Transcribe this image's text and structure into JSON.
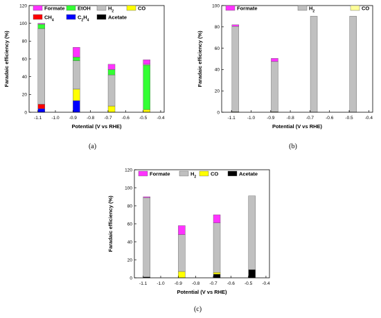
{
  "chart_data": [
    {
      "type": "bar",
      "stacked": true,
      "caption": "(a)",
      "xlabel": "Potential (V vs RHE)",
      "ylabel": "Faradaic efficiency (%)",
      "xlim": [
        -1.15,
        -0.38
      ],
      "ylim": [
        0,
        120
      ],
      "xticks": [
        -1.1,
        -1.0,
        -0.9,
        -0.8,
        -0.7,
        -0.6,
        -0.5,
        -0.4
      ],
      "yticks": [
        0,
        20,
        40,
        60,
        80,
        100,
        120
      ],
      "legend_position": "top",
      "legend": [
        {
          "name": "Formate",
          "color": "#ff33ff"
        },
        {
          "name": "EtOH",
          "color": "#33ff33"
        },
        {
          "name": "H",
          "sub": "2",
          "color": "#c0c0c0"
        },
        {
          "name": "CO",
          "color": "#ffff00"
        },
        {
          "name": "CH",
          "sub": "4",
          "color": "#ff0000"
        },
        {
          "name": "C",
          "sub": "2",
          "suffix": "H",
          "sub2": "4",
          "color": "#0000ff"
        },
        {
          "name": "Acetate",
          "color": "#000000"
        }
      ],
      "x": [
        -1.08,
        -0.88,
        -0.68,
        -0.48
      ],
      "stacks": [
        [
          {
            "s": "C2H4",
            "v": 4,
            "c": "#0000ff"
          },
          {
            "s": "CH4",
            "v": 5,
            "c": "#ff0000"
          },
          {
            "s": "H2",
            "v": 85,
            "c": "#c0c0c0"
          },
          {
            "s": "EtOH",
            "v": 5,
            "c": "#33ff33"
          },
          {
            "s": "Formate",
            "v": 1,
            "c": "#ff33ff"
          }
        ],
        [
          {
            "s": "C2H4",
            "v": 13,
            "c": "#0000ff"
          },
          {
            "s": "CO",
            "v": 13,
            "c": "#ffff00"
          },
          {
            "s": "H2",
            "v": 32,
            "c": "#c0c0c0"
          },
          {
            "s": "EtOH",
            "v": 4,
            "c": "#33ff33"
          },
          {
            "s": "Formate",
            "v": 11,
            "c": "#ff33ff"
          }
        ],
        [
          {
            "s": "CO",
            "v": 7,
            "c": "#ffff00"
          },
          {
            "s": "H2",
            "v": 35,
            "c": "#c0c0c0"
          },
          {
            "s": "EtOH",
            "v": 6,
            "c": "#33ff33"
          },
          {
            "s": "Formate",
            "v": 6,
            "c": "#ff33ff"
          }
        ],
        [
          {
            "s": "CO",
            "v": 3,
            "c": "#ffff00"
          },
          {
            "s": "EtOH",
            "v": 50,
            "c": "#33ff33"
          },
          {
            "s": "H2",
            "v": 1,
            "c": "#c0c0c0"
          },
          {
            "s": "Formate",
            "v": 5,
            "c": "#ff33ff"
          }
        ]
      ]
    },
    {
      "type": "bar",
      "stacked": true,
      "caption": "(b)",
      "xlabel": "Potential (V vs RHE)",
      "ylabel": "Faradaic efficiency (%)",
      "xlim": [
        -1.15,
        -0.38
      ],
      "ylim": [
        0,
        100
      ],
      "xticks": [
        -1.1,
        -1.0,
        -0.9,
        -0.8,
        -0.7,
        -0.6,
        -0.5,
        -0.4
      ],
      "yticks": [
        0,
        20,
        40,
        60,
        80,
        100
      ],
      "legend_position": "top",
      "legend": [
        {
          "name": "Formate",
          "color": "#ff33ff"
        },
        {
          "name": "H",
          "sub": "2",
          "color": "#c0c0c0"
        },
        {
          "name": "CO",
          "color": "#ffff99"
        }
      ],
      "x": [
        -1.08,
        -0.88,
        -0.68,
        -0.48
      ],
      "stacks": [
        [
          {
            "s": "CO",
            "v": 0.5,
            "c": "#ffff99"
          },
          {
            "s": "H2",
            "v": 80,
            "c": "#c0c0c0"
          },
          {
            "s": "Formate",
            "v": 1.5,
            "c": "#ff33ff"
          }
        ],
        [
          {
            "s": "CO",
            "v": 0.5,
            "c": "#ffff99"
          },
          {
            "s": "H2",
            "v": 47,
            "c": "#c0c0c0"
          },
          {
            "s": "Formate",
            "v": 3,
            "c": "#ff33ff"
          }
        ],
        [
          {
            "s": "H2",
            "v": 90,
            "c": "#c0c0c0"
          }
        ],
        [
          {
            "s": "H2",
            "v": 90,
            "c": "#c0c0c0"
          }
        ]
      ]
    },
    {
      "type": "bar",
      "stacked": true,
      "caption": "(c)",
      "xlabel": "Potential (V vs RHE)",
      "ylabel": "Faradaic efficiency (%)",
      "xlim": [
        -1.15,
        -0.38
      ],
      "ylim": [
        0,
        120
      ],
      "xticks": [
        -1.1,
        -1.0,
        -0.9,
        -0.8,
        -0.7,
        -0.6,
        -0.5,
        -0.4
      ],
      "yticks": [
        0,
        20,
        40,
        60,
        80,
        100,
        120
      ],
      "legend_position": "top",
      "legend": [
        {
          "name": "Formate",
          "color": "#ff33ff"
        },
        {
          "name": "H",
          "sub": "2",
          "color": "#c0c0c0"
        },
        {
          "name": "CO",
          "color": "#ffff00"
        },
        {
          "name": "Acetate",
          "color": "#000000"
        }
      ],
      "x": [
        -1.08,
        -0.88,
        -0.68,
        -0.48
      ],
      "stacks": [
        [
          {
            "s": "Acetate",
            "v": 1,
            "c": "#000000"
          },
          {
            "s": "H2",
            "v": 88,
            "c": "#c0c0c0"
          },
          {
            "s": "Formate",
            "v": 1,
            "c": "#ff33ff"
          }
        ],
        [
          {
            "s": "CO",
            "v": 7,
            "c": "#ffff00"
          },
          {
            "s": "H2",
            "v": 41,
            "c": "#c0c0c0"
          },
          {
            "s": "Formate",
            "v": 10,
            "c": "#ff33ff"
          }
        ],
        [
          {
            "s": "Acetate",
            "v": 4,
            "c": "#000000"
          },
          {
            "s": "CO",
            "v": 2,
            "c": "#ffff00"
          },
          {
            "s": "H2",
            "v": 55,
            "c": "#c0c0c0"
          },
          {
            "s": "Formate",
            "v": 9,
            "c": "#ff33ff"
          }
        ],
        [
          {
            "s": "Acetate",
            "v": 9,
            "c": "#000000"
          },
          {
            "s": "H2",
            "v": 82,
            "c": "#c0c0c0"
          }
        ]
      ]
    }
  ]
}
